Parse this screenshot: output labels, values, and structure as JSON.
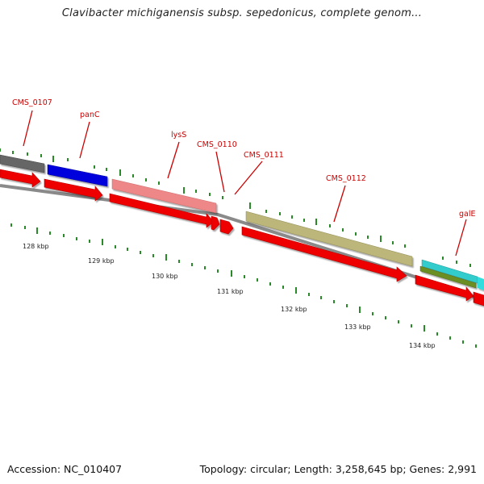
{
  "title": "Clavibacter michiganensis subsp. sepedonicus, complete genom...",
  "footer": {
    "accession": "Accession: NC_010407",
    "topology": "Topology: circular; Length: 3,258,645 bp; Genes: 2,991"
  },
  "genes": [
    {
      "name": "CMS_0107"
    },
    {
      "name": "panC"
    },
    {
      "name": "lysS"
    },
    {
      "name": "CMS_0110"
    },
    {
      "name": "CMS_0111"
    },
    {
      "name": "CMS_0112"
    },
    {
      "name": "galE"
    }
  ],
  "scale_ticks": [
    "128 kbp",
    "129 kbp",
    "130 kbp",
    "131 kbp",
    "132 kbp",
    "133 kbp",
    "134 kbp"
  ],
  "colors": {
    "cds_arrow": "#ee0000",
    "backbone": "#888888",
    "tick": "#2a8a2a",
    "label": "#cc0000",
    "gene_gray": "#666666",
    "gene_blue": "#0000dd",
    "gene_pink": "#ee8888",
    "gene_olive": "#bcb67a",
    "gene_teal": "#33cccc",
    "gene_green": "#6b8e23"
  }
}
